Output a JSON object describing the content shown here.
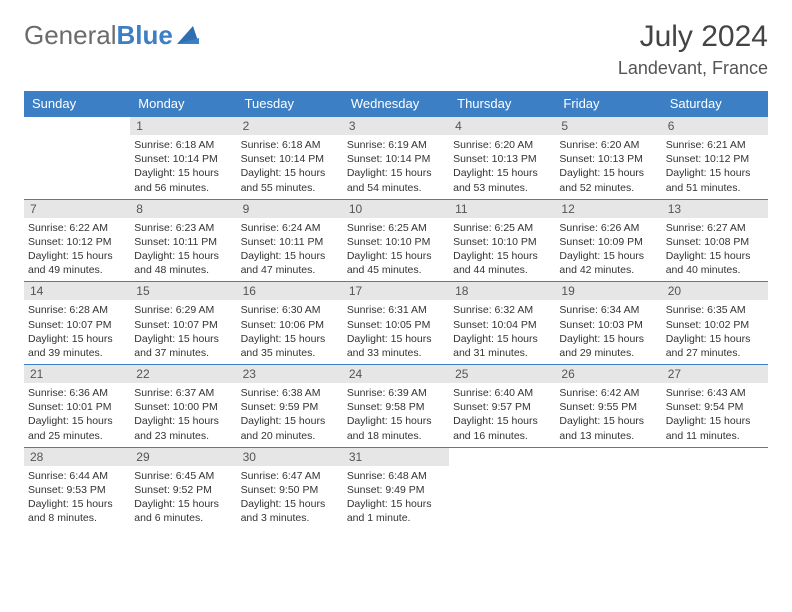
{
  "brand": {
    "text1": "General",
    "text2": "Blue"
  },
  "title": "July 2024",
  "location": "Landevant, France",
  "colors": {
    "header_bg": "#3c7fc4",
    "header_text": "#ffffff",
    "daynum_bg": "#e6e6e6",
    "border": "#3c7fc4",
    "text": "#333333",
    "background": "#ffffff"
  },
  "weekdays": [
    "Sunday",
    "Monday",
    "Tuesday",
    "Wednesday",
    "Thursday",
    "Friday",
    "Saturday"
  ],
  "weeks": [
    [
      null,
      {
        "n": "1",
        "sr": "6:18 AM",
        "ss": "10:14 PM",
        "dl": "15 hours and 56 minutes."
      },
      {
        "n": "2",
        "sr": "6:18 AM",
        "ss": "10:14 PM",
        "dl": "15 hours and 55 minutes."
      },
      {
        "n": "3",
        "sr": "6:19 AM",
        "ss": "10:14 PM",
        "dl": "15 hours and 54 minutes."
      },
      {
        "n": "4",
        "sr": "6:20 AM",
        "ss": "10:13 PM",
        "dl": "15 hours and 53 minutes."
      },
      {
        "n": "5",
        "sr": "6:20 AM",
        "ss": "10:13 PM",
        "dl": "15 hours and 52 minutes."
      },
      {
        "n": "6",
        "sr": "6:21 AM",
        "ss": "10:12 PM",
        "dl": "15 hours and 51 minutes."
      }
    ],
    [
      {
        "n": "7",
        "sr": "6:22 AM",
        "ss": "10:12 PM",
        "dl": "15 hours and 49 minutes."
      },
      {
        "n": "8",
        "sr": "6:23 AM",
        "ss": "10:11 PM",
        "dl": "15 hours and 48 minutes."
      },
      {
        "n": "9",
        "sr": "6:24 AM",
        "ss": "10:11 PM",
        "dl": "15 hours and 47 minutes."
      },
      {
        "n": "10",
        "sr": "6:25 AM",
        "ss": "10:10 PM",
        "dl": "15 hours and 45 minutes."
      },
      {
        "n": "11",
        "sr": "6:25 AM",
        "ss": "10:10 PM",
        "dl": "15 hours and 44 minutes."
      },
      {
        "n": "12",
        "sr": "6:26 AM",
        "ss": "10:09 PM",
        "dl": "15 hours and 42 minutes."
      },
      {
        "n": "13",
        "sr": "6:27 AM",
        "ss": "10:08 PM",
        "dl": "15 hours and 40 minutes."
      }
    ],
    [
      {
        "n": "14",
        "sr": "6:28 AM",
        "ss": "10:07 PM",
        "dl": "15 hours and 39 minutes."
      },
      {
        "n": "15",
        "sr": "6:29 AM",
        "ss": "10:07 PM",
        "dl": "15 hours and 37 minutes."
      },
      {
        "n": "16",
        "sr": "6:30 AM",
        "ss": "10:06 PM",
        "dl": "15 hours and 35 minutes."
      },
      {
        "n": "17",
        "sr": "6:31 AM",
        "ss": "10:05 PM",
        "dl": "15 hours and 33 minutes."
      },
      {
        "n": "18",
        "sr": "6:32 AM",
        "ss": "10:04 PM",
        "dl": "15 hours and 31 minutes."
      },
      {
        "n": "19",
        "sr": "6:34 AM",
        "ss": "10:03 PM",
        "dl": "15 hours and 29 minutes."
      },
      {
        "n": "20",
        "sr": "6:35 AM",
        "ss": "10:02 PM",
        "dl": "15 hours and 27 minutes."
      }
    ],
    [
      {
        "n": "21",
        "sr": "6:36 AM",
        "ss": "10:01 PM",
        "dl": "15 hours and 25 minutes."
      },
      {
        "n": "22",
        "sr": "6:37 AM",
        "ss": "10:00 PM",
        "dl": "15 hours and 23 minutes."
      },
      {
        "n": "23",
        "sr": "6:38 AM",
        "ss": "9:59 PM",
        "dl": "15 hours and 20 minutes."
      },
      {
        "n": "24",
        "sr": "6:39 AM",
        "ss": "9:58 PM",
        "dl": "15 hours and 18 minutes."
      },
      {
        "n": "25",
        "sr": "6:40 AM",
        "ss": "9:57 PM",
        "dl": "15 hours and 16 minutes."
      },
      {
        "n": "26",
        "sr": "6:42 AM",
        "ss": "9:55 PM",
        "dl": "15 hours and 13 minutes."
      },
      {
        "n": "27",
        "sr": "6:43 AM",
        "ss": "9:54 PM",
        "dl": "15 hours and 11 minutes."
      }
    ],
    [
      {
        "n": "28",
        "sr": "6:44 AM",
        "ss": "9:53 PM",
        "dl": "15 hours and 8 minutes."
      },
      {
        "n": "29",
        "sr": "6:45 AM",
        "ss": "9:52 PM",
        "dl": "15 hours and 6 minutes."
      },
      {
        "n": "30",
        "sr": "6:47 AM",
        "ss": "9:50 PM",
        "dl": "15 hours and 3 minutes."
      },
      {
        "n": "31",
        "sr": "6:48 AM",
        "ss": "9:49 PM",
        "dl": "15 hours and 1 minute."
      },
      null,
      null,
      null
    ]
  ],
  "labels": {
    "sunrise": "Sunrise:",
    "sunset": "Sunset:",
    "daylight": "Daylight:"
  }
}
